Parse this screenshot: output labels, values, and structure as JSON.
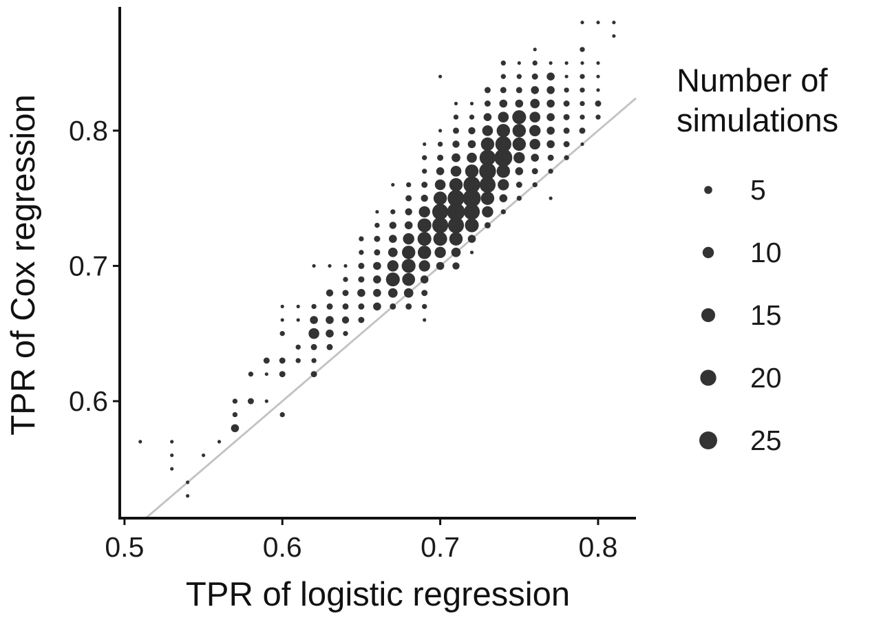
{
  "chart_data": {
    "type": "scatter",
    "xlabel": "TPR of logistic regression",
    "ylabel": "TPR of Cox regression",
    "xlim": [
      0.497,
      0.824
    ],
    "ylim": [
      0.5135,
      0.8915
    ],
    "x_ticks": [
      0.5,
      0.6,
      0.7,
      0.8
    ],
    "x_tick_labels": [
      "0.5",
      "0.6",
      "0.7",
      "0.8"
    ],
    "y_ticks": [
      0.6,
      0.7,
      0.8
    ],
    "y_tick_labels": [
      "0.6",
      "0.7",
      "0.8"
    ],
    "grid": false,
    "reference_line": {
      "type": "identity",
      "slope": 1,
      "intercept": 0,
      "color": "#c4c4c4"
    },
    "point_color": "#333333",
    "size_variable": "Number of simulations",
    "legend": {
      "title_lines": [
        "Number of",
        "simulations"
      ],
      "placement": "right",
      "sizes": [
        5,
        10,
        15,
        20,
        25
      ],
      "labels": [
        "5",
        "10",
        "15",
        "20",
        "25"
      ]
    },
    "points": [
      {
        "x": 0.51,
        "y": 0.57,
        "n": 1
      },
      {
        "x": 0.53,
        "y": 0.57,
        "n": 1
      },
      {
        "x": 0.53,
        "y": 0.56,
        "n": 1
      },
      {
        "x": 0.53,
        "y": 0.55,
        "n": 1
      },
      {
        "x": 0.54,
        "y": 0.54,
        "n": 1
      },
      {
        "x": 0.54,
        "y": 0.53,
        "n": 1
      },
      {
        "x": 0.55,
        "y": 0.56,
        "n": 1
      },
      {
        "x": 0.56,
        "y": 0.57,
        "n": 1
      },
      {
        "x": 0.57,
        "y": 0.6,
        "n": 2
      },
      {
        "x": 0.57,
        "y": 0.59,
        "n": 2
      },
      {
        "x": 0.57,
        "y": 0.58,
        "n": 5
      },
      {
        "x": 0.58,
        "y": 0.62,
        "n": 2
      },
      {
        "x": 0.58,
        "y": 0.6,
        "n": 3
      },
      {
        "x": 0.59,
        "y": 0.63,
        "n": 3
      },
      {
        "x": 0.59,
        "y": 0.62,
        "n": 1
      },
      {
        "x": 0.59,
        "y": 0.6,
        "n": 1
      },
      {
        "x": 0.6,
        "y": 0.67,
        "n": 1
      },
      {
        "x": 0.6,
        "y": 0.66,
        "n": 1
      },
      {
        "x": 0.6,
        "y": 0.65,
        "n": 2
      },
      {
        "x": 0.6,
        "y": 0.63,
        "n": 3
      },
      {
        "x": 0.6,
        "y": 0.62,
        "n": 3
      },
      {
        "x": 0.6,
        "y": 0.59,
        "n": 2
      },
      {
        "x": 0.61,
        "y": 0.67,
        "n": 1
      },
      {
        "x": 0.61,
        "y": 0.66,
        "n": 1
      },
      {
        "x": 0.61,
        "y": 0.64,
        "n": 2
      },
      {
        "x": 0.61,
        "y": 0.63,
        "n": 2
      },
      {
        "x": 0.62,
        "y": 0.7,
        "n": 1
      },
      {
        "x": 0.62,
        "y": 0.67,
        "n": 2
      },
      {
        "x": 0.62,
        "y": 0.66,
        "n": 5
      },
      {
        "x": 0.62,
        "y": 0.65,
        "n": 9
      },
      {
        "x": 0.62,
        "y": 0.64,
        "n": 3
      },
      {
        "x": 0.62,
        "y": 0.63,
        "n": 2
      },
      {
        "x": 0.62,
        "y": 0.62,
        "n": 3
      },
      {
        "x": 0.63,
        "y": 0.7,
        "n": 1
      },
      {
        "x": 0.63,
        "y": 0.68,
        "n": 4
      },
      {
        "x": 0.63,
        "y": 0.67,
        "n": 3
      },
      {
        "x": 0.63,
        "y": 0.66,
        "n": 5
      },
      {
        "x": 0.63,
        "y": 0.65,
        "n": 5
      },
      {
        "x": 0.63,
        "y": 0.64,
        "n": 3
      },
      {
        "x": 0.64,
        "y": 0.7,
        "n": 1
      },
      {
        "x": 0.64,
        "y": 0.69,
        "n": 2
      },
      {
        "x": 0.64,
        "y": 0.68,
        "n": 3
      },
      {
        "x": 0.64,
        "y": 0.67,
        "n": 3
      },
      {
        "x": 0.64,
        "y": 0.66,
        "n": 4
      },
      {
        "x": 0.64,
        "y": 0.65,
        "n": 2
      },
      {
        "x": 0.65,
        "y": 0.72,
        "n": 2
      },
      {
        "x": 0.65,
        "y": 0.71,
        "n": 2
      },
      {
        "x": 0.65,
        "y": 0.7,
        "n": 3
      },
      {
        "x": 0.65,
        "y": 0.69,
        "n": 3
      },
      {
        "x": 0.65,
        "y": 0.68,
        "n": 5
      },
      {
        "x": 0.65,
        "y": 0.67,
        "n": 3
      },
      {
        "x": 0.65,
        "y": 0.66,
        "n": 3
      },
      {
        "x": 0.66,
        "y": 0.74,
        "n": 1
      },
      {
        "x": 0.66,
        "y": 0.73,
        "n": 2
      },
      {
        "x": 0.66,
        "y": 0.72,
        "n": 3
      },
      {
        "x": 0.66,
        "y": 0.71,
        "n": 3
      },
      {
        "x": 0.66,
        "y": 0.7,
        "n": 5
      },
      {
        "x": 0.66,
        "y": 0.69,
        "n": 5
      },
      {
        "x": 0.66,
        "y": 0.68,
        "n": 5
      },
      {
        "x": 0.66,
        "y": 0.67,
        "n": 5
      },
      {
        "x": 0.67,
        "y": 0.76,
        "n": 1
      },
      {
        "x": 0.67,
        "y": 0.74,
        "n": 2
      },
      {
        "x": 0.67,
        "y": 0.73,
        "n": 4
      },
      {
        "x": 0.67,
        "y": 0.72,
        "n": 5
      },
      {
        "x": 0.67,
        "y": 0.71,
        "n": 7
      },
      {
        "x": 0.67,
        "y": 0.7,
        "n": 10
      },
      {
        "x": 0.67,
        "y": 0.69,
        "n": 15
      },
      {
        "x": 0.67,
        "y": 0.68,
        "n": 7
      },
      {
        "x": 0.67,
        "y": 0.67,
        "n": 3
      },
      {
        "x": 0.68,
        "y": 0.76,
        "n": 2
      },
      {
        "x": 0.68,
        "y": 0.75,
        "n": 3
      },
      {
        "x": 0.68,
        "y": 0.74,
        "n": 4
      },
      {
        "x": 0.68,
        "y": 0.73,
        "n": 5
      },
      {
        "x": 0.68,
        "y": 0.72,
        "n": 10
      },
      {
        "x": 0.68,
        "y": 0.71,
        "n": 14
      },
      {
        "x": 0.68,
        "y": 0.7,
        "n": 15
      },
      {
        "x": 0.68,
        "y": 0.69,
        "n": 13
      },
      {
        "x": 0.68,
        "y": 0.68,
        "n": 7
      },
      {
        "x": 0.68,
        "y": 0.67,
        "n": 3
      },
      {
        "x": 0.69,
        "y": 0.79,
        "n": 1
      },
      {
        "x": 0.69,
        "y": 0.78,
        "n": 2
      },
      {
        "x": 0.69,
        "y": 0.77,
        "n": 2
      },
      {
        "x": 0.69,
        "y": 0.76,
        "n": 3
      },
      {
        "x": 0.69,
        "y": 0.75,
        "n": 4
      },
      {
        "x": 0.69,
        "y": 0.74,
        "n": 10
      },
      {
        "x": 0.69,
        "y": 0.73,
        "n": 15
      },
      {
        "x": 0.69,
        "y": 0.72,
        "n": 15
      },
      {
        "x": 0.69,
        "y": 0.71,
        "n": 14
      },
      {
        "x": 0.69,
        "y": 0.7,
        "n": 10
      },
      {
        "x": 0.69,
        "y": 0.69,
        "n": 5
      },
      {
        "x": 0.69,
        "y": 0.68,
        "n": 3
      },
      {
        "x": 0.69,
        "y": 0.67,
        "n": 2
      },
      {
        "x": 0.69,
        "y": 0.66,
        "n": 1
      },
      {
        "x": 0.7,
        "y": 0.84,
        "n": 1
      },
      {
        "x": 0.7,
        "y": 0.8,
        "n": 1
      },
      {
        "x": 0.7,
        "y": 0.79,
        "n": 2
      },
      {
        "x": 0.7,
        "y": 0.78,
        "n": 3
      },
      {
        "x": 0.7,
        "y": 0.77,
        "n": 5
      },
      {
        "x": 0.7,
        "y": 0.76,
        "n": 9
      },
      {
        "x": 0.7,
        "y": 0.75,
        "n": 14
      },
      {
        "x": 0.7,
        "y": 0.74,
        "n": 20
      },
      {
        "x": 0.7,
        "y": 0.73,
        "n": 20
      },
      {
        "x": 0.7,
        "y": 0.72,
        "n": 15
      },
      {
        "x": 0.7,
        "y": 0.71,
        "n": 10
      },
      {
        "x": 0.7,
        "y": 0.7,
        "n": 5
      },
      {
        "x": 0.71,
        "y": 0.82,
        "n": 1
      },
      {
        "x": 0.71,
        "y": 0.81,
        "n": 2
      },
      {
        "x": 0.71,
        "y": 0.8,
        "n": 3
      },
      {
        "x": 0.71,
        "y": 0.79,
        "n": 4
      },
      {
        "x": 0.71,
        "y": 0.78,
        "n": 6
      },
      {
        "x": 0.71,
        "y": 0.77,
        "n": 9
      },
      {
        "x": 0.71,
        "y": 0.76,
        "n": 14
      },
      {
        "x": 0.71,
        "y": 0.75,
        "n": 22
      },
      {
        "x": 0.71,
        "y": 0.74,
        "n": 25
      },
      {
        "x": 0.71,
        "y": 0.73,
        "n": 20
      },
      {
        "x": 0.71,
        "y": 0.72,
        "n": 14
      },
      {
        "x": 0.71,
        "y": 0.71,
        "n": 7
      },
      {
        "x": 0.71,
        "y": 0.7,
        "n": 4
      },
      {
        "x": 0.72,
        "y": 0.82,
        "n": 1
      },
      {
        "x": 0.72,
        "y": 0.81,
        "n": 2
      },
      {
        "x": 0.72,
        "y": 0.8,
        "n": 4
      },
      {
        "x": 0.72,
        "y": 0.79,
        "n": 5
      },
      {
        "x": 0.72,
        "y": 0.78,
        "n": 8
      },
      {
        "x": 0.72,
        "y": 0.77,
        "n": 14
      },
      {
        "x": 0.72,
        "y": 0.76,
        "n": 22
      },
      {
        "x": 0.72,
        "y": 0.75,
        "n": 25
      },
      {
        "x": 0.72,
        "y": 0.74,
        "n": 20
      },
      {
        "x": 0.72,
        "y": 0.73,
        "n": 15
      },
      {
        "x": 0.72,
        "y": 0.72,
        "n": 5
      },
      {
        "x": 0.72,
        "y": 0.71,
        "n": 1
      },
      {
        "x": 0.73,
        "y": 0.83,
        "n": 3
      },
      {
        "x": 0.73,
        "y": 0.82,
        "n": 3
      },
      {
        "x": 0.73,
        "y": 0.81,
        "n": 5
      },
      {
        "x": 0.73,
        "y": 0.8,
        "n": 9
      },
      {
        "x": 0.73,
        "y": 0.79,
        "n": 14
      },
      {
        "x": 0.73,
        "y": 0.78,
        "n": 20
      },
      {
        "x": 0.73,
        "y": 0.77,
        "n": 22
      },
      {
        "x": 0.73,
        "y": 0.76,
        "n": 20
      },
      {
        "x": 0.73,
        "y": 0.75,
        "n": 14
      },
      {
        "x": 0.73,
        "y": 0.74,
        "n": 10
      },
      {
        "x": 0.73,
        "y": 0.73,
        "n": 3
      },
      {
        "x": 0.74,
        "y": 0.85,
        "n": 2
      },
      {
        "x": 0.74,
        "y": 0.84,
        "n": 2
      },
      {
        "x": 0.74,
        "y": 0.83,
        "n": 3
      },
      {
        "x": 0.74,
        "y": 0.82,
        "n": 5
      },
      {
        "x": 0.74,
        "y": 0.81,
        "n": 9
      },
      {
        "x": 0.74,
        "y": 0.8,
        "n": 14
      },
      {
        "x": 0.74,
        "y": 0.79,
        "n": 20
      },
      {
        "x": 0.74,
        "y": 0.78,
        "n": 25
      },
      {
        "x": 0.74,
        "y": 0.77,
        "n": 14
      },
      {
        "x": 0.74,
        "y": 0.76,
        "n": 10
      },
      {
        "x": 0.74,
        "y": 0.75,
        "n": 5
      },
      {
        "x": 0.74,
        "y": 0.74,
        "n": 2
      },
      {
        "x": 0.75,
        "y": 0.85,
        "n": 1
      },
      {
        "x": 0.75,
        "y": 0.84,
        "n": 2
      },
      {
        "x": 0.75,
        "y": 0.83,
        "n": 3
      },
      {
        "x": 0.75,
        "y": 0.82,
        "n": 5
      },
      {
        "x": 0.75,
        "y": 0.81,
        "n": 15
      },
      {
        "x": 0.75,
        "y": 0.8,
        "n": 14
      },
      {
        "x": 0.75,
        "y": 0.79,
        "n": 14
      },
      {
        "x": 0.75,
        "y": 0.78,
        "n": 10
      },
      {
        "x": 0.75,
        "y": 0.77,
        "n": 5
      },
      {
        "x": 0.75,
        "y": 0.76,
        "n": 3
      },
      {
        "x": 0.75,
        "y": 0.75,
        "n": 2
      },
      {
        "x": 0.76,
        "y": 0.86,
        "n": 1
      },
      {
        "x": 0.76,
        "y": 0.85,
        "n": 2
      },
      {
        "x": 0.76,
        "y": 0.84,
        "n": 3
      },
      {
        "x": 0.76,
        "y": 0.83,
        "n": 5
      },
      {
        "x": 0.76,
        "y": 0.82,
        "n": 7
      },
      {
        "x": 0.76,
        "y": 0.81,
        "n": 9
      },
      {
        "x": 0.76,
        "y": 0.8,
        "n": 10
      },
      {
        "x": 0.76,
        "y": 0.79,
        "n": 9
      },
      {
        "x": 0.76,
        "y": 0.78,
        "n": 5
      },
      {
        "x": 0.76,
        "y": 0.77,
        "n": 3
      },
      {
        "x": 0.76,
        "y": 0.76,
        "n": 2
      },
      {
        "x": 0.77,
        "y": 0.85,
        "n": 1
      },
      {
        "x": 0.77,
        "y": 0.84,
        "n": 5
      },
      {
        "x": 0.77,
        "y": 0.83,
        "n": 5
      },
      {
        "x": 0.77,
        "y": 0.82,
        "n": 5
      },
      {
        "x": 0.77,
        "y": 0.81,
        "n": 5
      },
      {
        "x": 0.77,
        "y": 0.8,
        "n": 5
      },
      {
        "x": 0.77,
        "y": 0.79,
        "n": 5
      },
      {
        "x": 0.77,
        "y": 0.78,
        "n": 3
      },
      {
        "x": 0.77,
        "y": 0.77,
        "n": 2
      },
      {
        "x": 0.77,
        "y": 0.75,
        "n": 1
      },
      {
        "x": 0.78,
        "y": 0.85,
        "n": 1
      },
      {
        "x": 0.78,
        "y": 0.84,
        "n": 1
      },
      {
        "x": 0.78,
        "y": 0.83,
        "n": 2
      },
      {
        "x": 0.78,
        "y": 0.82,
        "n": 3
      },
      {
        "x": 0.78,
        "y": 0.81,
        "n": 3
      },
      {
        "x": 0.78,
        "y": 0.8,
        "n": 3
      },
      {
        "x": 0.78,
        "y": 0.79,
        "n": 3
      },
      {
        "x": 0.78,
        "y": 0.78,
        "n": 2
      },
      {
        "x": 0.79,
        "y": 0.88,
        "n": 1
      },
      {
        "x": 0.79,
        "y": 0.86,
        "n": 2
      },
      {
        "x": 0.79,
        "y": 0.85,
        "n": 1
      },
      {
        "x": 0.79,
        "y": 0.84,
        "n": 2
      },
      {
        "x": 0.79,
        "y": 0.83,
        "n": 2
      },
      {
        "x": 0.79,
        "y": 0.82,
        "n": 2
      },
      {
        "x": 0.79,
        "y": 0.81,
        "n": 2
      },
      {
        "x": 0.79,
        "y": 0.8,
        "n": 3
      },
      {
        "x": 0.79,
        "y": 0.79,
        "n": 1
      },
      {
        "x": 0.8,
        "y": 0.88,
        "n": 1
      },
      {
        "x": 0.8,
        "y": 0.85,
        "n": 1
      },
      {
        "x": 0.8,
        "y": 0.84,
        "n": 1
      },
      {
        "x": 0.8,
        "y": 0.83,
        "n": 1
      },
      {
        "x": 0.8,
        "y": 0.82,
        "n": 3
      },
      {
        "x": 0.8,
        "y": 0.81,
        "n": 2
      },
      {
        "x": 0.81,
        "y": 0.88,
        "n": 1
      },
      {
        "x": 0.81,
        "y": 0.87,
        "n": 1
      }
    ]
  }
}
